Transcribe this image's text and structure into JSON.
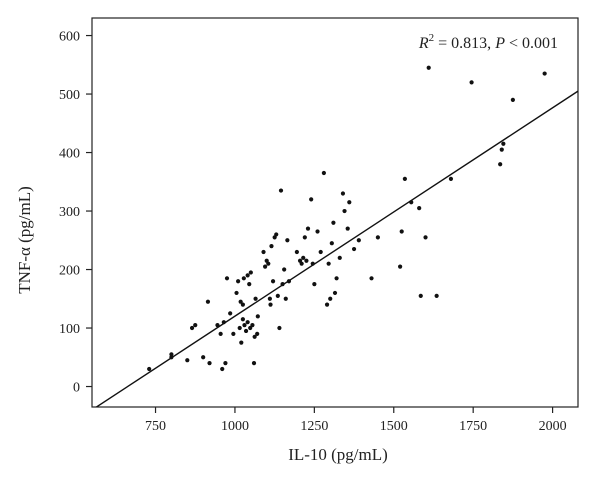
{
  "chart_data": {
    "type": "scatter",
    "xlabel": "IL-10 (pg/mL)",
    "ylabel": "TNF-α (pg/mL)",
    "xlim": [
      550,
      2080
    ],
    "ylim": [
      -35,
      630
    ],
    "xticks": [
      750,
      1000,
      1250,
      1500,
      1750,
      2000
    ],
    "yticks": [
      0,
      100,
      200,
      300,
      400,
      500,
      600
    ],
    "grid": false,
    "annotation": {
      "r_label": "R",
      "r_exp": "2",
      "equals": " = 0.813, ",
      "p_label": "P",
      "p_rest": " < 0.001"
    },
    "fit_line": {
      "x": [
        550,
        2080
      ],
      "y": [
        -40,
        505
      ]
    },
    "points": {
      "x": [
        730,
        800,
        800,
        850,
        865,
        875,
        900,
        915,
        920,
        945,
        955,
        960,
        965,
        970,
        975,
        985,
        995,
        1005,
        1010,
        1015,
        1018,
        1020,
        1025,
        1025,
        1028,
        1030,
        1035,
        1040,
        1040,
        1045,
        1048,
        1050,
        1055,
        1060,
        1062,
        1065,
        1070,
        1072,
        1090,
        1095,
        1100,
        1105,
        1110,
        1112,
        1115,
        1120,
        1125,
        1130,
        1135,
        1140,
        1145,
        1150,
        1155,
        1160,
        1165,
        1170,
        1195,
        1205,
        1210,
        1215,
        1220,
        1225,
        1230,
        1240,
        1245,
        1250,
        1260,
        1270,
        1280,
        1290,
        1295,
        1300,
        1305,
        1310,
        1315,
        1320,
        1330,
        1340,
        1345,
        1355,
        1360,
        1375,
        1390,
        1430,
        1450,
        1520,
        1525,
        1535,
        1555,
        1580,
        1585,
        1600,
        1610,
        1635,
        1680,
        1745,
        1835,
        1840,
        1845,
        1875,
        1975
      ],
      "y": [
        30,
        50,
        55,
        45,
        100,
        105,
        50,
        145,
        40,
        105,
        90,
        30,
        110,
        40,
        185,
        125,
        90,
        160,
        180,
        100,
        145,
        75,
        115,
        140,
        185,
        105,
        95,
        110,
        190,
        175,
        100,
        195,
        105,
        40,
        85,
        150,
        90,
        120,
        230,
        205,
        215,
        210,
        150,
        140,
        240,
        180,
        255,
        260,
        155,
        100,
        335,
        175,
        200,
        150,
        250,
        180,
        230,
        215,
        210,
        220,
        255,
        215,
        270,
        320,
        210,
        175,
        265,
        230,
        365,
        140,
        210,
        150,
        245,
        280,
        160,
        185,
        220,
        330,
        300,
        270,
        315,
        235,
        250,
        185,
        255,
        205,
        265,
        355,
        315,
        305,
        155,
        255,
        545,
        155,
        355,
        520,
        380,
        405,
        415,
        490,
        535
      ]
    }
  }
}
